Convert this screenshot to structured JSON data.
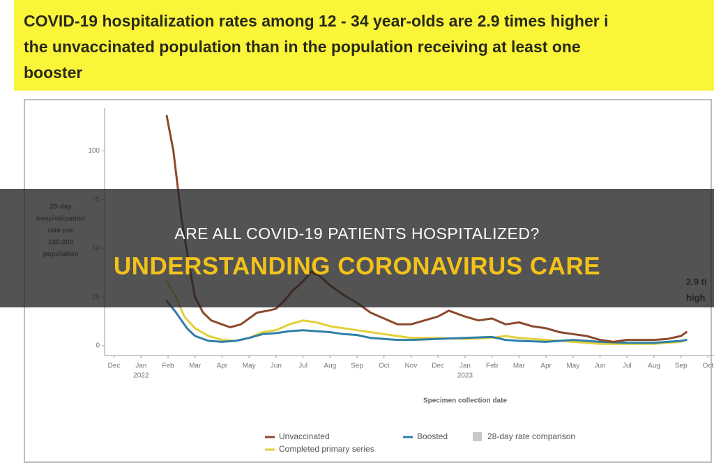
{
  "overlay": {
    "title": "ARE ALL COVID-19 PATIENTS HOSPITALIZED?",
    "subtitle": "UNDERSTANDING CORONAVIRUS CARE"
  },
  "chart_data": {
    "type": "line",
    "title_lines": [
      "COVID-19 hospitalization rates among 12 - 34 year-olds are 2.9 times higher i",
      "the unvaccinated population than in the population receiving at least one",
      "booster"
    ],
    "ylabel_lines": [
      "28-day",
      "hospitalization",
      "rate per",
      "100,000",
      "population"
    ],
    "xlabel": "Specimen collection date",
    "annotation_lines": [
      "2.9 ti",
      "high"
    ],
    "xlim": [
      -0.35,
      22.3
    ],
    "ylim": [
      -5,
      122
    ],
    "yticks": [
      0,
      25,
      50,
      75,
      100
    ],
    "xticks": [
      {
        "value": 0,
        "label": "Dec"
      },
      {
        "value": 1,
        "label": "Jan"
      },
      {
        "value": 2,
        "label": "Feb"
      },
      {
        "value": 3,
        "label": "Mar"
      },
      {
        "value": 4,
        "label": "Apr"
      },
      {
        "value": 5,
        "label": "May"
      },
      {
        "value": 6,
        "label": "Jun"
      },
      {
        "value": 7,
        "label": "Jul"
      },
      {
        "value": 8,
        "label": "Aug"
      },
      {
        "value": 9,
        "label": "Sep"
      },
      {
        "value": 10,
        "label": "Oct"
      },
      {
        "value": 11,
        "label": "Nov"
      },
      {
        "value": 12,
        "label": "Dec"
      },
      {
        "value": 13,
        "label": "Jan"
      },
      {
        "value": 14,
        "label": "Feb"
      },
      {
        "value": 15,
        "label": "Mar"
      },
      {
        "value": 16,
        "label": "Apr"
      },
      {
        "value": 17,
        "label": "May"
      },
      {
        "value": 18,
        "label": "Jun"
      },
      {
        "value": 19,
        "label": "Jul"
      },
      {
        "value": 20,
        "label": "Aug"
      },
      {
        "value": 21,
        "label": "Sep"
      },
      {
        "value": 22,
        "label": "Oct"
      }
    ],
    "year_labels": [
      {
        "value": 1,
        "label": "2022"
      },
      {
        "value": 13,
        "label": "2023"
      }
    ],
    "series": [
      {
        "name": "Unvaccinated",
        "color": "#8b4a2b",
        "x": [
          1.95,
          2.2,
          2.5,
          2.8,
          3.0,
          3.3,
          3.6,
          4.0,
          4.3,
          4.7,
          5.0,
          5.3,
          5.7,
          6.0,
          6.3,
          6.6,
          7.0,
          7.3,
          7.6,
          8.0,
          8.5,
          9.0,
          9.5,
          10.0,
          10.5,
          11.0,
          11.5,
          12.0,
          12.4,
          13.0,
          13.5,
          14.0,
          14.5,
          15.0,
          15.5,
          16.0,
          16.5,
          17.0,
          17.5,
          18.0,
          18.5,
          19.0,
          19.5,
          20.0,
          20.5,
          21.0,
          21.2
        ],
        "values": [
          118,
          100,
          65,
          40,
          25,
          17,
          13,
          11,
          9.5,
          11,
          14,
          17,
          18,
          19,
          23,
          28,
          33,
          38,
          36,
          31,
          26,
          22,
          17,
          14,
          11,
          11,
          13,
          15,
          18,
          15,
          13,
          14,
          11,
          12,
          10,
          9,
          7,
          6,
          5,
          3,
          2,
          3,
          3,
          3,
          3.5,
          5,
          7
        ]
      },
      {
        "name": "Completed primary series",
        "color": "#e3cf3a",
        "x": [
          1.95,
          2.3,
          2.6,
          3.0,
          3.5,
          4.0,
          4.5,
          5.0,
          5.5,
          6.0,
          6.5,
          7.0,
          7.5,
          8.0,
          8.5,
          9.0,
          9.5,
          10.0,
          10.5,
          11.0,
          12.0,
          13.0,
          14.0,
          14.5,
          15.0,
          16.0,
          17.0,
          18.0,
          19.0,
          20.0,
          21.0,
          21.2
        ],
        "values": [
          33,
          25,
          15,
          9,
          5,
          3,
          2.5,
          4,
          7,
          8,
          11,
          13,
          12,
          10,
          9,
          8,
          7,
          6,
          5,
          4,
          4,
          3.5,
          4,
          5,
          4,
          3,
          2,
          1,
          1,
          1,
          2,
          3
        ]
      },
      {
        "name": "Boosted",
        "color": "#2f7fa8",
        "x": [
          1.95,
          2.3,
          2.7,
          3.0,
          3.5,
          4.0,
          4.5,
          5.0,
          5.5,
          6.0,
          6.5,
          7.0,
          7.5,
          8.0,
          8.5,
          9.0,
          9.5,
          10.0,
          10.5,
          11.0,
          12.0,
          13.0,
          14.0,
          14.5,
          15.0,
          16.0,
          17.0,
          18.0,
          19.0,
          20.0,
          21.0,
          21.2
        ],
        "values": [
          23,
          17,
          9,
          5,
          2.5,
          2,
          2.5,
          4,
          6,
          6.5,
          7.5,
          8,
          7.5,
          7,
          6,
          5.5,
          4,
          3.5,
          3,
          3,
          3.5,
          4,
          4.5,
          3,
          2.5,
          2,
          3,
          2,
          1.5,
          1.5,
          2.5,
          3
        ]
      }
    ],
    "legend_extra": {
      "name": "28-day rate comparison",
      "color": "#c8c8c8"
    }
  }
}
